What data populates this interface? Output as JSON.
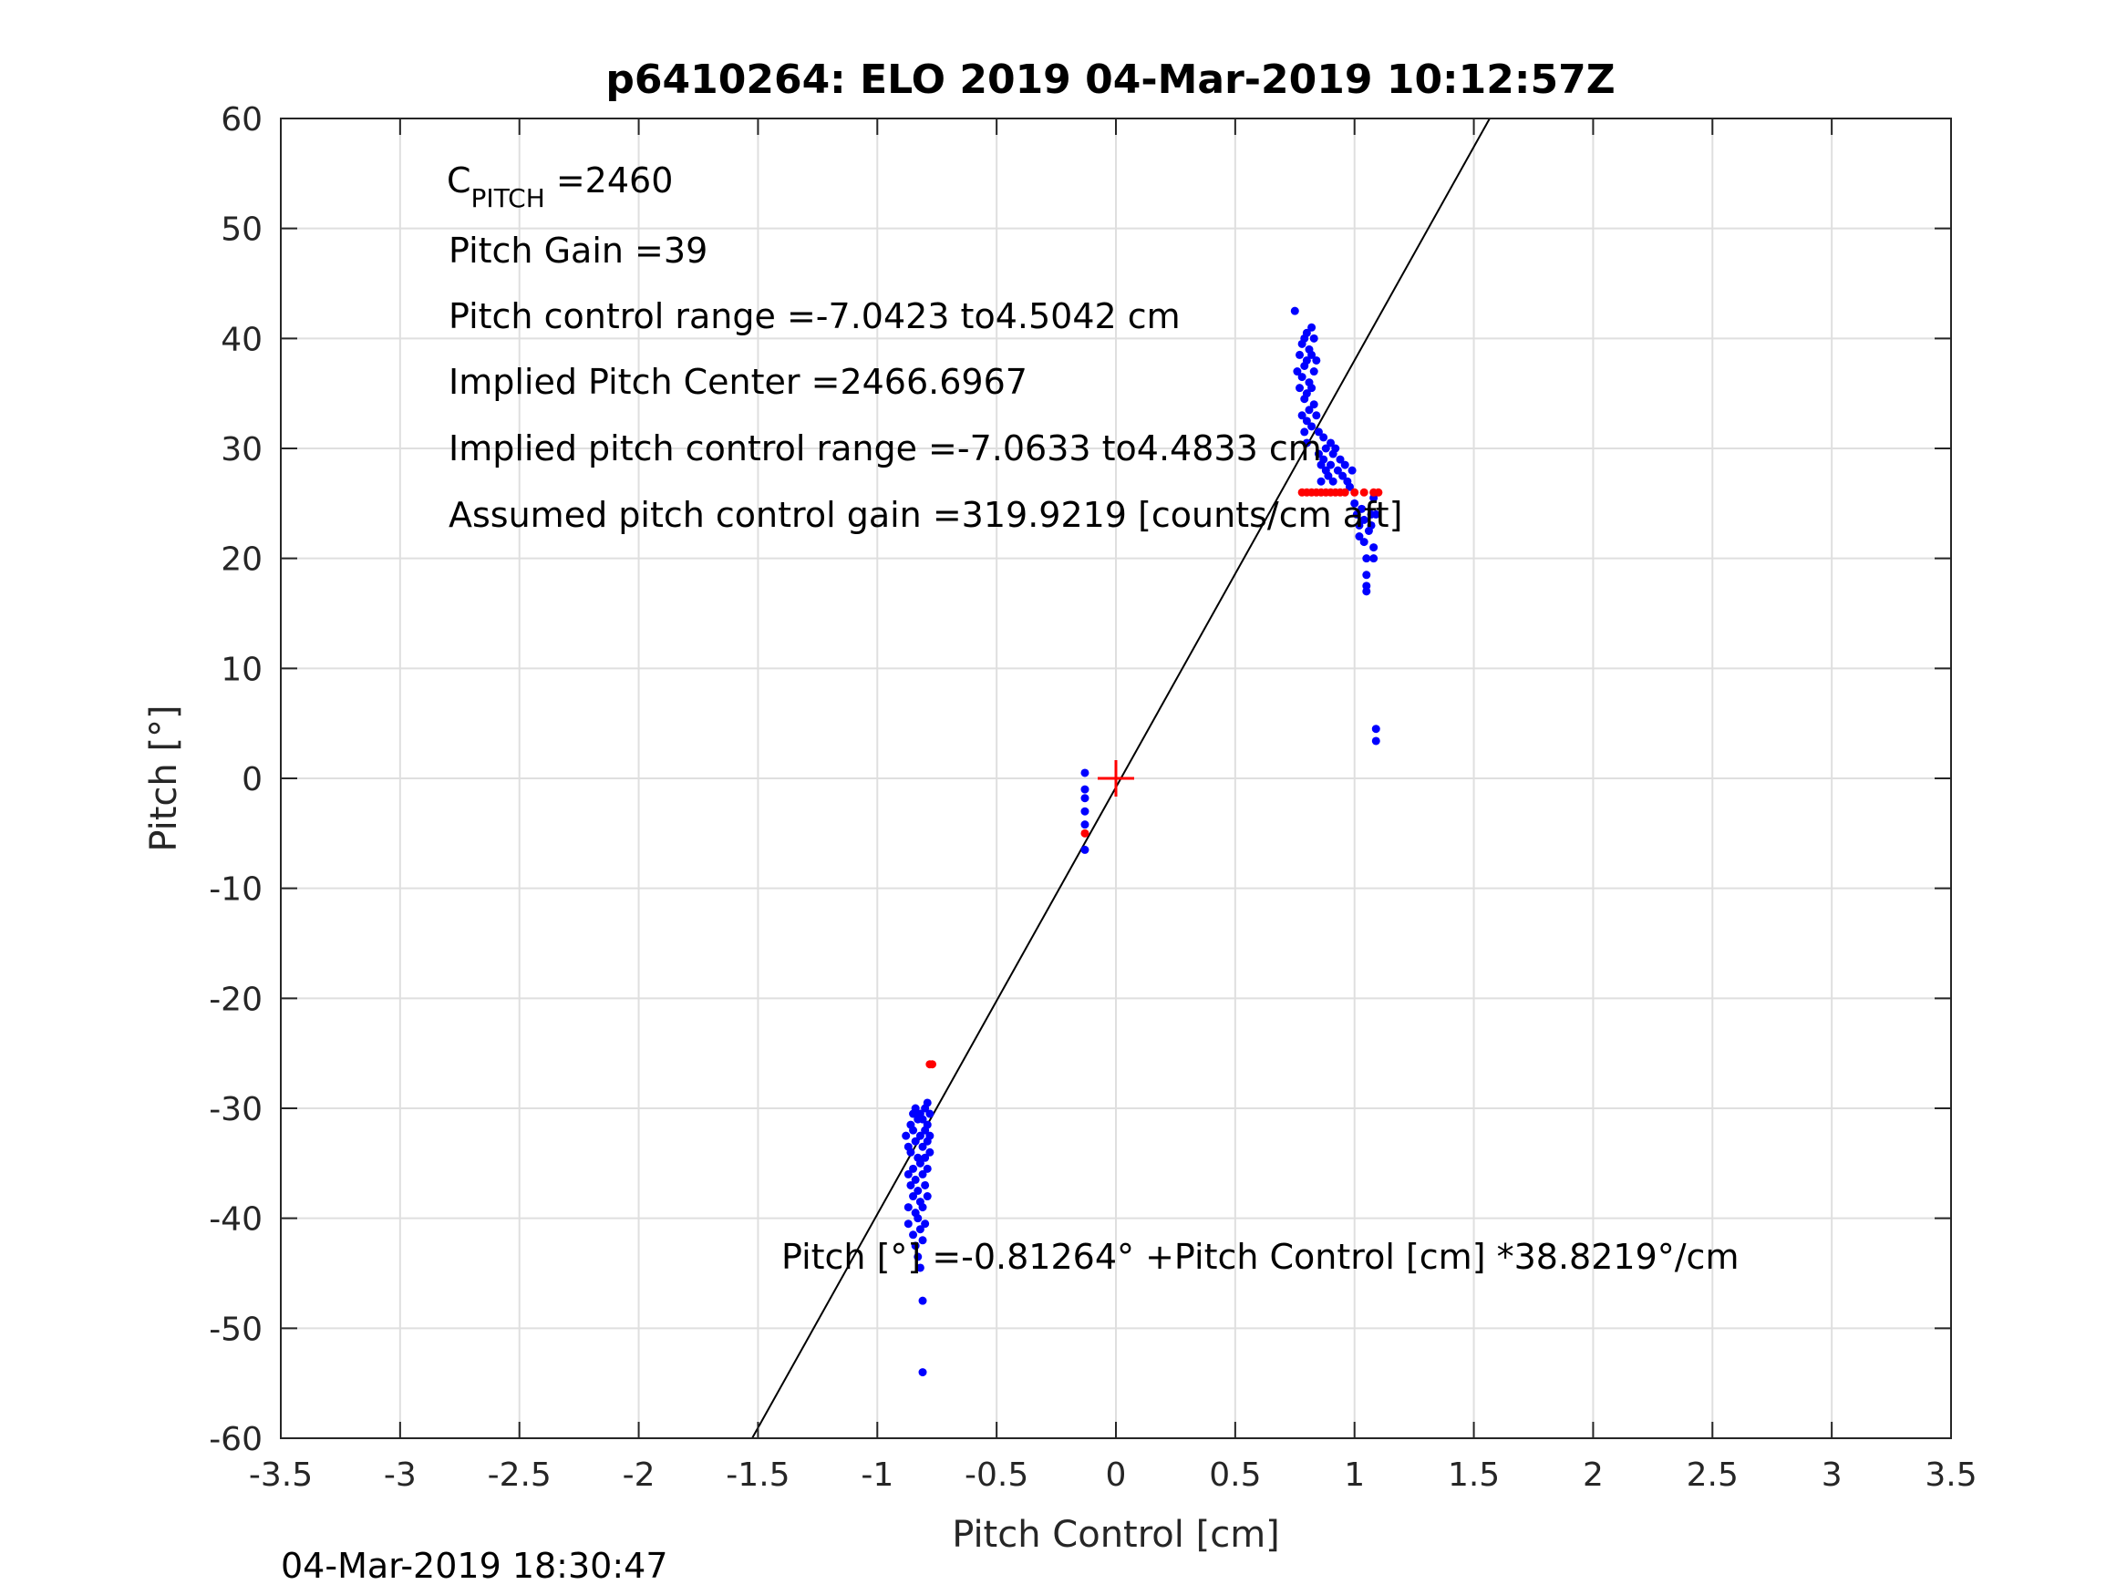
{
  "chart_data": {
    "type": "scatter",
    "title": "p6410264: ELO 2019 04-Mar-2019 10:12:57Z",
    "xlabel": "Pitch Control [cm]",
    "ylabel": "Pitch [°]",
    "xlim": [
      -3.5,
      3.5
    ],
    "ylim": [
      -60,
      60
    ],
    "x_ticks": [
      "-3.5",
      "-3",
      "-2.5",
      "-2",
      "-1.5",
      "-1",
      "-0.5",
      "0",
      "0.5",
      "1",
      "1.5",
      "2",
      "2.5",
      "3",
      "3.5"
    ],
    "y_ticks": [
      "60",
      "50",
      "40",
      "30",
      "20",
      "10",
      "0",
      "-10",
      "-20",
      "-30",
      "-40",
      "-50",
      "-60"
    ],
    "grid": true,
    "annotations": {
      "c_pitch_main": "C",
      "c_pitch_sub": "PITCH",
      "c_pitch_value": " =2460",
      "pitch_gain": "Pitch Gain =39",
      "control_range": "Pitch control range =-7.0423 to4.5042 cm",
      "implied_center": "Implied Pitch Center =2466.6967",
      "implied_range": "Implied pitch control range =-7.0633 to4.4833 cm",
      "assumed_gain": "Assumed pitch control gain =319.9219 [counts/cm aft]",
      "fit_equation": "Pitch [°] =-0.81264° +Pitch Control [cm] *38.8219°/cm"
    },
    "fit_line": {
      "intercept": -0.81264,
      "slope": 38.8219,
      "color": "#000000"
    },
    "center_marker": {
      "x": 0,
      "y": 0,
      "color": "#ff0000"
    },
    "series": [
      {
        "color": "#0000ff",
        "points": [
          [
            -0.88,
            -32.5
          ],
          [
            -0.87,
            -33.5
          ],
          [
            -0.87,
            -36.0
          ],
          [
            -0.87,
            -39.0
          ],
          [
            -0.87,
            -40.5
          ],
          [
            -0.86,
            -31.5
          ],
          [
            -0.86,
            -34.0
          ],
          [
            -0.86,
            -37.0
          ],
          [
            -0.85,
            -30.5
          ],
          [
            -0.85,
            -32.0
          ],
          [
            -0.85,
            -35.5
          ],
          [
            -0.85,
            -38.0
          ],
          [
            -0.85,
            -41.5
          ],
          [
            -0.84,
            -30.0
          ],
          [
            -0.84,
            -33.0
          ],
          [
            -0.84,
            -36.5
          ],
          [
            -0.84,
            -39.5
          ],
          [
            -0.84,
            -42.5
          ],
          [
            -0.83,
            -31.0
          ],
          [
            -0.83,
            -34.5
          ],
          [
            -0.83,
            -37.5
          ],
          [
            -0.83,
            -40.0
          ],
          [
            -0.83,
            -43.5
          ],
          [
            -0.82,
            -30.5
          ],
          [
            -0.82,
            -32.5
          ],
          [
            -0.82,
            -35.0
          ],
          [
            -0.82,
            -38.5
          ],
          [
            -0.82,
            -41.0
          ],
          [
            -0.82,
            -44.5
          ],
          [
            -0.81,
            -31.0
          ],
          [
            -0.81,
            -33.5
          ],
          [
            -0.81,
            -36.0
          ],
          [
            -0.81,
            -39.0
          ],
          [
            -0.81,
            -42.0
          ],
          [
            -0.81,
            -47.5
          ],
          [
            -0.81,
            -54.0
          ],
          [
            -0.8,
            -30.0
          ],
          [
            -0.8,
            -32.0
          ],
          [
            -0.8,
            -34.5
          ],
          [
            -0.8,
            -37.0
          ],
          [
            -0.8,
            -40.5
          ],
          [
            -0.79,
            -29.5
          ],
          [
            -0.79,
            -31.5
          ],
          [
            -0.79,
            -33.0
          ],
          [
            -0.79,
            -35.5
          ],
          [
            -0.79,
            -38.0
          ],
          [
            -0.78,
            -30.5
          ],
          [
            -0.78,
            -32.5
          ],
          [
            -0.78,
            -34.0
          ],
          [
            -0.13,
            0.5
          ],
          [
            -0.13,
            -1.0
          ],
          [
            -0.13,
            -1.8
          ],
          [
            -0.13,
            -3.0
          ],
          [
            -0.13,
            -4.2
          ],
          [
            -0.13,
            -6.5
          ],
          [
            0.75,
            42.5
          ],
          [
            0.76,
            37.0
          ],
          [
            0.77,
            38.5
          ],
          [
            0.77,
            35.5
          ],
          [
            0.78,
            39.5
          ],
          [
            0.78,
            36.5
          ],
          [
            0.78,
            33.0
          ],
          [
            0.79,
            40.0
          ],
          [
            0.79,
            37.5
          ],
          [
            0.79,
            34.5
          ],
          [
            0.79,
            31.5
          ],
          [
            0.8,
            40.5
          ],
          [
            0.8,
            38.0
          ],
          [
            0.8,
            35.0
          ],
          [
            0.8,
            32.5
          ],
          [
            0.8,
            30.5
          ],
          [
            0.81,
            39.0
          ],
          [
            0.81,
            36.0
          ],
          [
            0.81,
            33.5
          ],
          [
            0.82,
            41.0
          ],
          [
            0.82,
            38.5
          ],
          [
            0.82,
            35.5
          ],
          [
            0.82,
            32.0
          ],
          [
            0.83,
            40.0
          ],
          [
            0.83,
            37.0
          ],
          [
            0.83,
            34.0
          ],
          [
            0.84,
            38.0
          ],
          [
            0.84,
            33.0
          ],
          [
            0.85,
            31.5
          ],
          [
            0.85,
            29.5
          ],
          [
            0.86,
            28.5
          ],
          [
            0.86,
            27.0
          ],
          [
            0.87,
            31.0
          ],
          [
            0.87,
            29.0
          ],
          [
            0.88,
            30.0
          ],
          [
            0.88,
            28.0
          ],
          [
            0.89,
            27.5
          ],
          [
            0.9,
            30.5
          ],
          [
            0.9,
            28.5
          ],
          [
            0.91,
            29.5
          ],
          [
            0.91,
            27.0
          ],
          [
            0.92,
            30.0
          ],
          [
            0.93,
            28.0
          ],
          [
            0.94,
            29.0
          ],
          [
            0.95,
            27.5
          ],
          [
            0.96,
            28.5
          ],
          [
            0.97,
            27.0
          ],
          [
            0.98,
            26.5
          ],
          [
            0.99,
            28.0
          ],
          [
            1.0,
            25.0
          ],
          [
            1.01,
            24.0
          ],
          [
            1.02,
            23.0
          ],
          [
            1.02,
            22.0
          ],
          [
            1.03,
            24.5
          ],
          [
            1.04,
            23.5
          ],
          [
            1.04,
            21.5
          ],
          [
            1.05,
            20.0
          ],
          [
            1.05,
            18.5
          ],
          [
            1.05,
            17.5
          ],
          [
            1.05,
            17.0
          ],
          [
            1.06,
            22.5
          ],
          [
            1.07,
            24.0
          ],
          [
            1.07,
            23.0
          ],
          [
            1.08,
            25.5
          ],
          [
            1.08,
            21.0
          ],
          [
            1.08,
            20.0
          ],
          [
            1.09,
            24.0
          ],
          [
            1.09,
            4.5
          ],
          [
            1.09,
            3.4
          ]
        ]
      },
      {
        "color": "#ff0000",
        "points": [
          [
            0.78,
            26.0
          ],
          [
            0.8,
            26.0
          ],
          [
            0.82,
            26.0
          ],
          [
            0.84,
            26.0
          ],
          [
            0.86,
            26.0
          ],
          [
            0.88,
            26.0
          ],
          [
            0.9,
            26.0
          ],
          [
            0.92,
            26.0
          ],
          [
            0.94,
            26.0
          ],
          [
            0.96,
            26.0
          ],
          [
            1.0,
            26.0
          ],
          [
            1.04,
            26.0
          ],
          [
            1.08,
            26.0
          ],
          [
            1.1,
            26.0
          ],
          [
            -0.13,
            -5.0
          ],
          [
            -0.78,
            -26.0
          ],
          [
            -0.77,
            -26.0
          ]
        ]
      }
    ]
  },
  "footer": {
    "timestamp": "04-Mar-2019 18:30:47"
  }
}
